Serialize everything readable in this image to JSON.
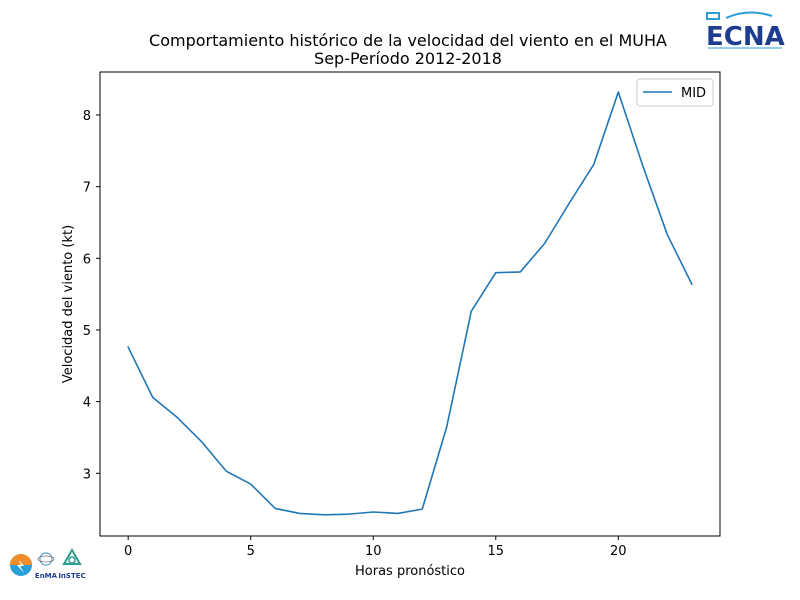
{
  "chart_data": {
    "type": "line",
    "title": "Comportamiento histórico de la velocidad del viento en el MUHA",
    "subtitle": "Sep-Período 2012-2018",
    "xlabel": "Horas pronóstico",
    "ylabel": "Velocidad del viento (kt)",
    "xlim": [
      -1.15,
      24.15
    ],
    "ylim": [
      2.125,
      8.6
    ],
    "xticks": [
      0,
      5,
      10,
      15,
      20
    ],
    "yticks": [
      3,
      4,
      5,
      6,
      7,
      8
    ],
    "grid": false,
    "legend_position": "top-right",
    "series": [
      {
        "name": "MID",
        "color": "#1f77b4",
        "x": [
          0,
          1,
          2,
          3,
          4,
          5,
          6,
          7,
          8,
          9,
          10,
          11,
          12,
          13,
          14,
          15,
          16,
          17,
          18,
          19,
          20,
          21,
          22,
          23
        ],
        "values": [
          4.76,
          4.06,
          3.78,
          3.44,
          3.03,
          2.85,
          2.51,
          2.44,
          2.42,
          2.43,
          2.46,
          2.44,
          2.5,
          3.65,
          5.26,
          5.8,
          5.81,
          6.21,
          6.77,
          7.31,
          8.32,
          7.29,
          6.33,
          5.64
        ]
      }
    ]
  },
  "logos": {
    "top_right": "ECNA",
    "bottom_left": [
      "EnMA",
      "InSTEC"
    ]
  }
}
